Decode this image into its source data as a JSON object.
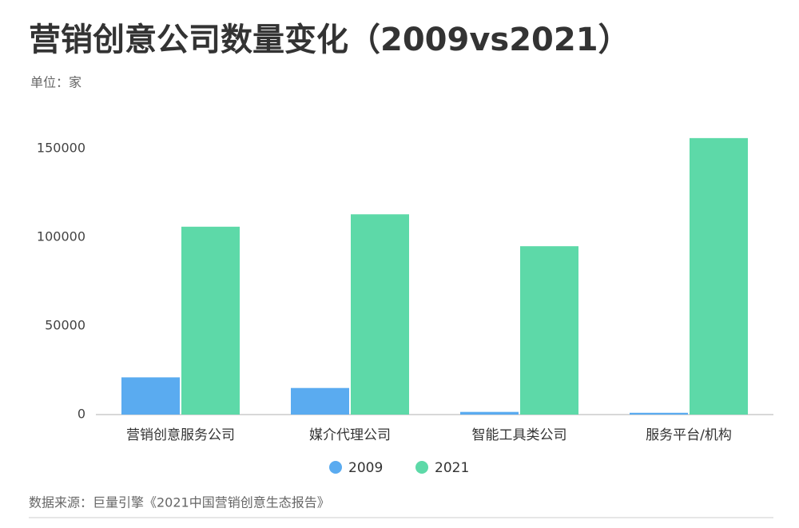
{
  "chart_data": {
    "type": "bar",
    "title": "营销创意公司数量变化（2009vs2021）",
    "subtitle": "单位：家",
    "source": "数据来源：巨量引擎《2021中国营销创意生态报告》",
    "categories": [
      "营销创意服务公司",
      "媒介代理公司",
      "智能工具类公司",
      "服务平台/机构"
    ],
    "series": [
      {
        "name": "2009",
        "color": "#5aabf0",
        "values": [
          21000,
          15000,
          1500,
          1000
        ]
      },
      {
        "name": "2021",
        "color": "#5dd9a8",
        "values": [
          106000,
          113000,
          95000,
          156000
        ]
      }
    ],
    "ylim": [
      0,
      160000
    ],
    "yticks": [
      0,
      50000,
      100000,
      150000
    ],
    "grid": false,
    "legend": "bottom"
  }
}
